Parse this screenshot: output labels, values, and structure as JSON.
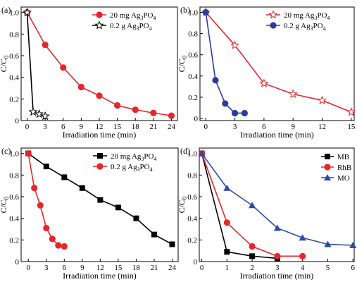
{
  "chart_data": [
    {
      "panel": "(a)",
      "type": "line",
      "xlabel": "Irradiation time (min)",
      "ylabel": "C/C0",
      "xlim": [
        -1,
        25
      ],
      "ylim": [
        0,
        1.05
      ],
      "xticks": [
        0,
        3,
        6,
        9,
        12,
        15,
        18,
        21,
        24
      ],
      "yticks": [
        0,
        0.2,
        0.4,
        0.6,
        0.8,
        1.0
      ],
      "legend_position": "top-right",
      "series": [
        {
          "name": "20 mg Ag3PO4",
          "marker": "circle",
          "color": "#e8262a",
          "x": [
            0,
            3,
            6,
            9,
            12,
            15,
            18,
            21,
            24
          ],
          "y": [
            1.0,
            0.7,
            0.49,
            0.31,
            0.23,
            0.14,
            0.1,
            0.07,
            0.045
          ]
        },
        {
          "name": "0.2 g Ag3PO4",
          "marker": "star-open",
          "color": "#000000",
          "x": [
            0,
            1,
            2,
            3
          ],
          "y": [
            1.0,
            0.08,
            0.06,
            0.04
          ]
        }
      ]
    },
    {
      "panel": "(b)",
      "type": "line",
      "xlabel": "Irradiation time (min)",
      "ylabel": "C/C0",
      "xlim": [
        -0.6,
        15.3
      ],
      "ylim": [
        -0.02,
        1.05
      ],
      "xticks": [
        0,
        3,
        6,
        9,
        12,
        15
      ],
      "yticks": [
        0,
        0.2,
        0.4,
        0.6,
        0.8,
        1.0
      ],
      "legend_position": "top-right",
      "series": [
        {
          "name": "20 mg Ag3PO4",
          "marker": "star-open",
          "color": "#e8262a",
          "x": [
            0,
            3,
            6,
            9,
            12,
            15
          ],
          "y": [
            1.0,
            0.69,
            0.33,
            0.23,
            0.17,
            0.06
          ]
        },
        {
          "name": "0.2 g Ag3PO4",
          "marker": "circle",
          "color": "#2b3a9e",
          "x": [
            0,
            1,
            2,
            3,
            4
          ],
          "y": [
            1.0,
            0.36,
            0.14,
            0.05,
            0.05
          ]
        }
      ]
    },
    {
      "panel": "(c)",
      "type": "line",
      "xlabel": "Irradiation time (min)",
      "ylabel": "C/C0",
      "xlim": [
        -1.2,
        25
      ],
      "ylim": [
        0,
        1.05
      ],
      "xticks": [
        0,
        3,
        6,
        9,
        12,
        15,
        18,
        21,
        24
      ],
      "yticks": [
        0,
        0.2,
        0.4,
        0.6,
        0.8,
        1.0
      ],
      "legend_position": "top-right",
      "series": [
        {
          "name": "20 mg Ag3PO4",
          "marker": "square",
          "color": "#000000",
          "x": [
            0,
            3,
            6,
            9,
            12,
            15,
            18,
            21,
            24
          ],
          "y": [
            1.0,
            0.88,
            0.78,
            0.68,
            0.57,
            0.5,
            0.4,
            0.25,
            0.16
          ]
        },
        {
          "name": "0.2 g Ag3PO4",
          "marker": "circle",
          "color": "#e8262a",
          "x": [
            0,
            1,
            2,
            3,
            4,
            5,
            6
          ],
          "y": [
            1.0,
            0.68,
            0.52,
            0.31,
            0.21,
            0.15,
            0.14
          ]
        }
      ]
    },
    {
      "panel": "(d)",
      "type": "line",
      "xlabel": "Irradiation time (min)",
      "ylabel": "C/C0",
      "xlim": [
        -0.1,
        6.05
      ],
      "ylim": [
        0,
        1.05
      ],
      "xticks": [
        0,
        1,
        2,
        3,
        4,
        5,
        6
      ],
      "yticks": [
        0,
        0.2,
        0.4,
        0.6,
        0.8,
        1.0
      ],
      "legend_position": "top-right",
      "series": [
        {
          "name": "MB",
          "marker": "square",
          "color": "#000000",
          "x": [
            0,
            1,
            2,
            3
          ],
          "y": [
            1.0,
            0.09,
            0.05,
            0.03
          ]
        },
        {
          "name": "RhB",
          "marker": "circle",
          "color": "#e8262a",
          "x": [
            0,
            1,
            2,
            3,
            4
          ],
          "y": [
            1.0,
            0.36,
            0.14,
            0.05,
            0.05
          ]
        },
        {
          "name": "MO",
          "marker": "triangle",
          "color": "#2b4aa8",
          "x": [
            0,
            1,
            2,
            3,
            4,
            5,
            6
          ],
          "y": [
            1.0,
            0.68,
            0.52,
            0.31,
            0.22,
            0.16,
            0.15
          ]
        }
      ]
    }
  ]
}
